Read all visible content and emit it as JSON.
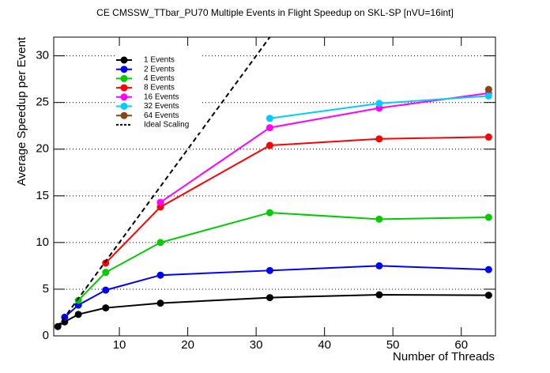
{
  "chart_data": {
    "type": "line",
    "title": "CE CMSSW_TTbar_PU70 Multiple Events in Flight Speedup on SKL-SP [nVU=16int]",
    "x_label": "Number of Threads",
    "y_label": "Average Speedup per Event",
    "xlim": [
      0.4,
      65
    ],
    "ylim": [
      0,
      32
    ],
    "xticks": [
      10,
      20,
      30,
      40,
      50,
      60
    ],
    "yticks": [
      0,
      5,
      10,
      15,
      20,
      25,
      30
    ],
    "grid": "y",
    "legend": "upper left",
    "series": [
      {
        "name": "1 Events",
        "color": "#000000",
        "x": [
          1,
          2,
          4,
          8,
          16,
          32,
          48,
          64
        ],
        "values": [
          1.0,
          1.5,
          2.3,
          3.0,
          3.5,
          4.1,
          4.4,
          4.35
        ]
      },
      {
        "name": "2 Events",
        "color": "#0000ff",
        "x": [
          2,
          4,
          8,
          16,
          32,
          48,
          64
        ],
        "values": [
          2.0,
          3.3,
          4.9,
          6.5,
          7.0,
          7.5,
          7.1
        ]
      },
      {
        "name": "4 Events",
        "color": "#00cc00",
        "x": [
          4,
          8,
          16,
          32,
          48,
          64
        ],
        "values": [
          3.8,
          6.8,
          10.0,
          13.2,
          12.5,
          12.7
        ]
      },
      {
        "name": "8 Events",
        "color": "#ff0000",
        "x": [
          8,
          16,
          32,
          48,
          64
        ],
        "values": [
          7.8,
          13.8,
          20.4,
          21.1,
          21.3
        ]
      },
      {
        "name": "16 Events",
        "color": "#ff00ff",
        "x": [
          16,
          32,
          48,
          64
        ],
        "values": [
          14.3,
          22.3,
          24.4,
          26.0
        ]
      },
      {
        "name": "32 Events",
        "color": "#00ccff",
        "x": [
          32,
          48,
          64
        ],
        "values": [
          23.3,
          24.9,
          25.7
        ]
      },
      {
        "name": "64 Events",
        "color": "#8b4513",
        "x": [
          64
        ],
        "values": [
          26.4
        ]
      },
      {
        "name": "Ideal Scaling",
        "color": "#000000",
        "dashed": true,
        "x": [
          1,
          32
        ],
        "values": [
          1,
          32
        ]
      }
    ]
  }
}
